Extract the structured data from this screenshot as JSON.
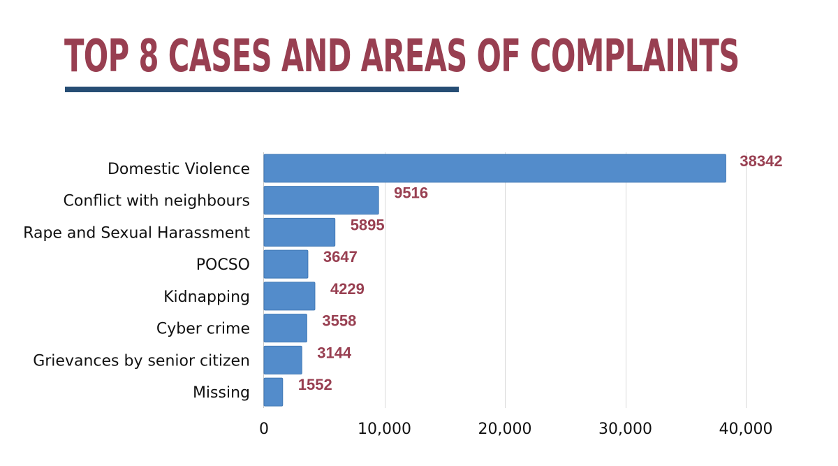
{
  "chart_data": {
    "type": "bar",
    "orientation": "horizontal",
    "title": "TOP 8 CASES AND AREAS OF COMPLAINTS",
    "categories": [
      "Domestic Violence",
      "Conflict with neighbours",
      "Rape and Sexual Harassment",
      "POCSO",
      "Kidnapping",
      "Cyber crime",
      "Grievances by senior citizen",
      "Missing"
    ],
    "values": [
      38342,
      9516,
      5895,
      3647,
      4229,
      3558,
      3144,
      1552
    ],
    "xlim": [
      0,
      40000
    ],
    "xticks": [
      0,
      10000,
      20000,
      30000,
      40000
    ],
    "xtick_labels": [
      "0",
      "10,000",
      "20,000",
      "30,000",
      "40,000"
    ],
    "xlabel": "",
    "ylabel": "",
    "grid": true,
    "legend": "none"
  },
  "colors": {
    "title": "#983f51",
    "underline": "#264d74",
    "bar": "#538ccb",
    "value_label": "#983f51"
  }
}
